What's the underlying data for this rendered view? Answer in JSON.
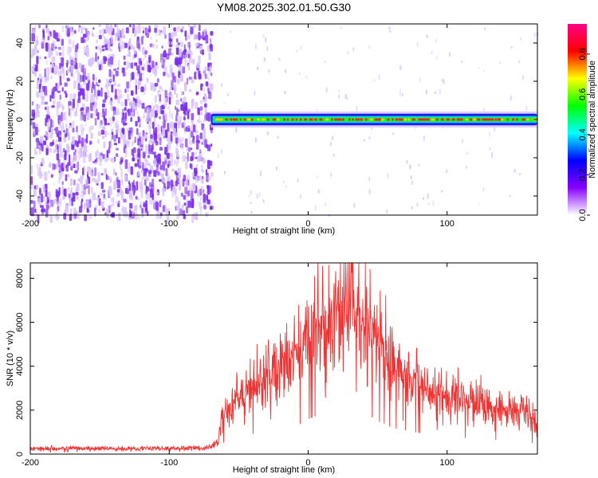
{
  "title": "YM08.2025.302.01.50.G30",
  "colors": {
    "background": "#ffffff",
    "snr_line": "#ee3333",
    "scatter_purple": "#7a2cf0",
    "scatter_light": "#d9c4fb",
    "ridge_core": "#ee2222",
    "ridge_mid": "#22ee22",
    "ridge_edge": "#1a1aff"
  },
  "chart_data": [
    {
      "type": "heatmap",
      "name": "spectrogram",
      "title": "YM08.2025.302.01.50.G30",
      "xlabel": "Height of straight line (km)",
      "ylabel": "Frequency (Hz)",
      "xlim": [
        -200,
        165
      ],
      "ylim": [
        -50,
        50
      ],
      "xticks": [
        -200,
        -100,
        0,
        100
      ],
      "xtick_labels": [
        "-200",
        "-100",
        "0",
        "100"
      ],
      "yticks": [
        -40,
        -20,
        0,
        20,
        40
      ],
      "ytick_labels": [
        "-40",
        "-20",
        "0",
        "20",
        "40"
      ],
      "noise_region_x": [
        -200,
        -70
      ],
      "ridge": {
        "frequency_hz": 0,
        "x_start": -70,
        "x_end": 165,
        "half_width_hz": 3
      },
      "colorbar": {
        "label": "Normalized spectral amplitude",
        "range": [
          0,
          0.95
        ],
        "ticks": [
          0,
          0.2,
          0.4,
          0.6,
          0.8
        ],
        "tick_labels": [
          "0.0",
          "0.2",
          "0.4",
          "0.6",
          "0.8"
        ],
        "colormap": [
          "#ffffff",
          "#8800ff",
          "#0000ff",
          "#00ffff",
          "#00ff00",
          "#ffff00",
          "#ff0000",
          "#ff0088"
        ]
      }
    },
    {
      "type": "line",
      "name": "snr",
      "xlabel": "Height of straight line (km)",
      "ylabel": "SNR (10 * v/v)",
      "xlim": [
        -200,
        165
      ],
      "ylim": [
        0,
        8700
      ],
      "xticks": [
        -200,
        -100,
        0,
        100
      ],
      "xtick_labels": [
        "-200",
        "-100",
        "0",
        "100"
      ],
      "yticks": [
        0,
        2000,
        4000,
        6000,
        8000
      ],
      "ytick_labels": [
        "0",
        "2000",
        "4000",
        "6000",
        "8000"
      ],
      "series": [
        {
          "x": [
            -200,
            -180,
            -160,
            -140,
            -120,
            -100,
            -80,
            -70,
            -65,
            -62,
            -55,
            -45,
            -35,
            -25,
            -15,
            -5,
            0,
            5,
            10,
            15,
            20,
            25,
            30,
            35,
            40,
            45,
            50,
            55,
            60,
            70,
            80,
            90,
            100,
            110,
            120,
            130,
            140,
            150,
            160,
            165
          ],
          "values": [
            250,
            260,
            250,
            250,
            260,
            255,
            270,
            300,
            600,
            1600,
            2400,
            2800,
            3300,
            3600,
            4000,
            4600,
            5300,
            5700,
            5500,
            6000,
            6300,
            6400,
            6700,
            6000,
            5900,
            5700,
            5000,
            4600,
            4000,
            3600,
            3200,
            2900,
            2700,
            2500,
            2300,
            2200,
            2100,
            2000,
            1800,
            1300
          ]
        }
      ]
    }
  ]
}
